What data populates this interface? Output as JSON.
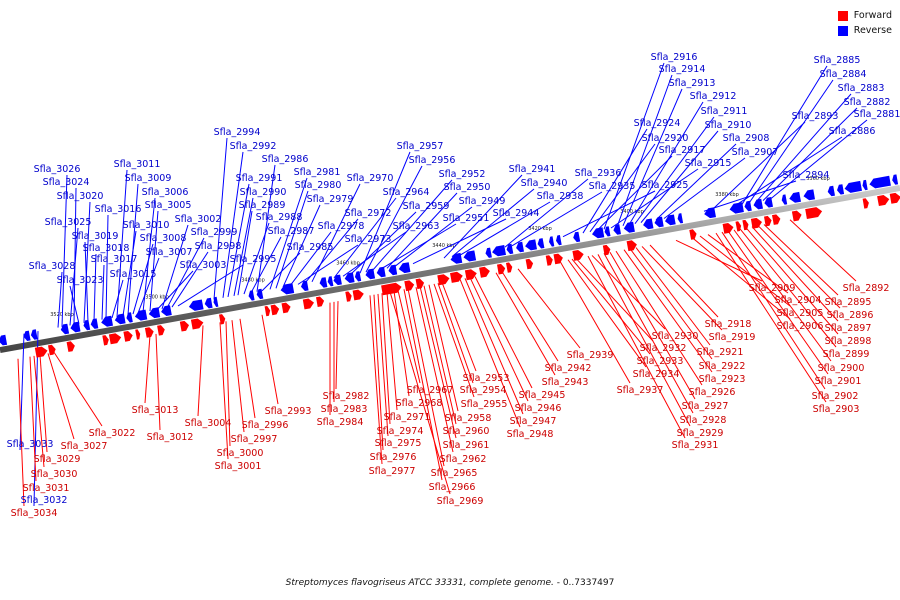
{
  "legend": {
    "forward_label": "Forward",
    "reverse_label": "Reverse",
    "forward_color": "#ff0000",
    "reverse_color": "#0000ff"
  },
  "caption": {
    "organism": "Streptomyces flavogriseus ATCC 33331, complete genome.",
    "range": " - 0..7337497"
  },
  "colors": {
    "backbone": "#888888",
    "forward": "#ff0000",
    "reverse": "#0000ff",
    "forward_label": "#cc0000",
    "reverse_label": "#0000cc",
    "ticks": "#111111"
  },
  "scale_ticks": [
    "3520 kbp",
    "3500 kbp",
    "3480 kbp",
    "3460 kbp",
    "3440 kbp",
    "3420 kbp",
    "3400 kbp",
    "3380 kbp",
    "3360 kbp"
  ],
  "reverse_genes": [
    "Sfla_3033",
    "Sfla_3032",
    "Sfla_3028",
    "Sfla_3026",
    "Sfla_3025",
    "Sfla_3024",
    "Sfla_3023",
    "Sfla_3020",
    "Sfla_3019",
    "Sfla_3018",
    "Sfla_3017",
    "Sfla_3016",
    "Sfla_3015",
    "Sfla_3011",
    "Sfla_3010",
    "Sfla_3009",
    "Sfla_3008",
    "Sfla_3007",
    "Sfla_3006",
    "Sfla_3005",
    "Sfla_3003",
    "Sfla_3002",
    "Sfla_2999",
    "Sfla_2998",
    "Sfla_2995",
    "Sfla_2994",
    "Sfla_2992",
    "Sfla_2991",
    "Sfla_2990",
    "Sfla_2989",
    "Sfla_2988",
    "Sfla_2987",
    "Sfla_2986",
    "Sfla_2985",
    "Sfla_2981",
    "Sfla_2980",
    "Sfla_2979",
    "Sfla_2978",
    "Sfla_2973",
    "Sfla_2972",
    "Sfla_2970",
    "Sfla_2964",
    "Sfla_2963",
    "Sfla_2959",
    "Sfla_2957",
    "Sfla_2956",
    "Sfla_2952",
    "Sfla_2951",
    "Sfla_2950",
    "Sfla_2949",
    "Sfla_2944",
    "Sfla_2941",
    "Sfla_2940",
    "Sfla_2938",
    "Sfla_2936",
    "Sfla_2935",
    "Sfla_2925",
    "Sfla_2924",
    "Sfla_2920",
    "Sfla_2917",
    "Sfla_2916",
    "Sfla_2915",
    "Sfla_2914",
    "Sfla_2913",
    "Sfla_2912",
    "Sfla_2911",
    "Sfla_2910",
    "Sfla_2908",
    "Sfla_2907",
    "Sfla_2894",
    "Sfla_2893",
    "Sfla_2886",
    "Sfla_2885",
    "Sfla_2884",
    "Sfla_2883",
    "Sfla_2882",
    "Sfla_2881"
  ],
  "forward_genes": [
    "Sfla_3034",
    "Sfla_3031",
    "Sfla_3030",
    "Sfla_3029",
    "Sfla_3027",
    "Sfla_3022",
    "Sfla_3013",
    "Sfla_3012",
    "Sfla_3004",
    "Sfla_3001",
    "Sfla_3000",
    "Sfla_2997",
    "Sfla_2996",
    "Sfla_2993",
    "Sfla_2984",
    "Sfla_2983",
    "Sfla_2982",
    "Sfla_2977",
    "Sfla_2976",
    "Sfla_2975",
    "Sfla_2974",
    "Sfla_2971",
    "Sfla_2969",
    "Sfla_2968",
    "Sfla_2967",
    "Sfla_2966",
    "Sfla_2965",
    "Sfla_2962",
    "Sfla_2961",
    "Sfla_2960",
    "Sfla_2958",
    "Sfla_2955",
    "Sfla_2954",
    "Sfla_2953",
    "Sfla_2948",
    "Sfla_2947",
    "Sfla_2946",
    "Sfla_2945",
    "Sfla_2943",
    "Sfla_2942",
    "Sfla_2939",
    "Sfla_2937",
    "Sfla_2934",
    "Sfla_2933",
    "Sfla_2932",
    "Sfla_2931",
    "Sfla_2930",
    "Sfla_2929",
    "Sfla_2928",
    "Sfla_2927",
    "Sfla_2926",
    "Sfla_2923",
    "Sfla_2922",
    "Sfla_2921",
    "Sfla_2919",
    "Sfla_2918",
    "Sfla_2909",
    "Sfla_2906",
    "Sfla_2905",
    "Sfla_2904",
    "Sfla_2903",
    "Sfla_2902",
    "Sfla_2901",
    "Sfla_2900",
    "Sfla_2899",
    "Sfla_2898",
    "Sfla_2897",
    "Sfla_2896",
    "Sfla_2895",
    "Sfla_2892"
  ]
}
